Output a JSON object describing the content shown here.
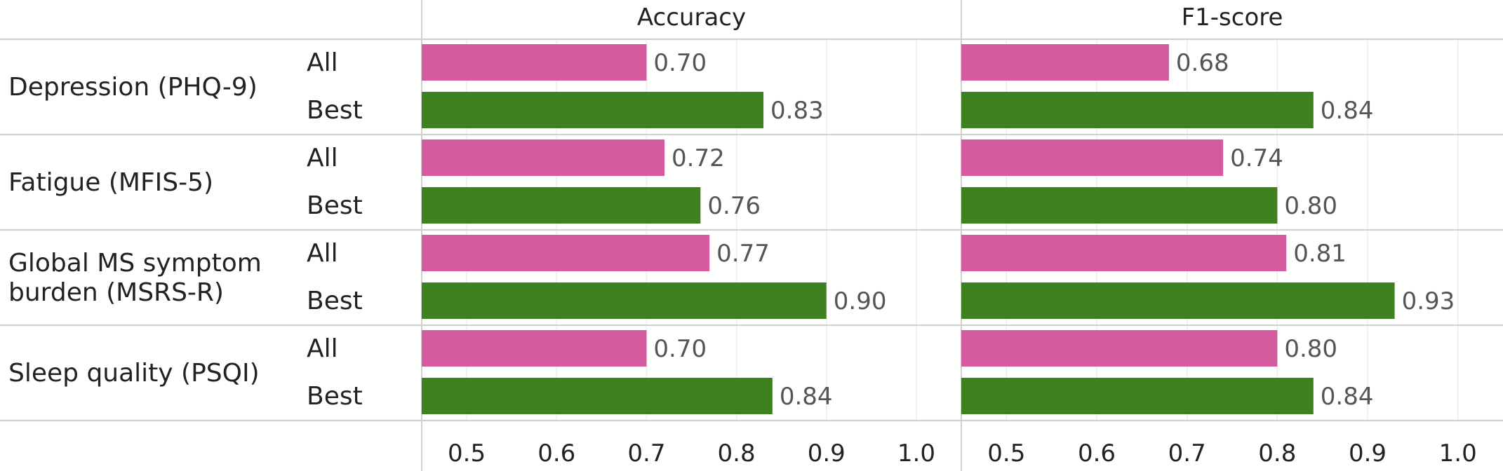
{
  "chart_data": {
    "type": "bar",
    "orientation": "horizontal",
    "panels": [
      "Accuracy",
      "F1-score"
    ],
    "groups": [
      {
        "label_lines": [
          "Depression (PHQ-9)"
        ]
      },
      {
        "label_lines": [
          "Fatigue (MFIS-5)"
        ]
      },
      {
        "label_lines": [
          "Global MS symptom",
          "burden (MSRS-R)"
        ]
      },
      {
        "label_lines": [
          "Sleep quality (PSQI)"
        ]
      }
    ],
    "subcategories": [
      "All",
      "Best"
    ],
    "values": {
      "Accuracy": [
        [
          0.7,
          0.83
        ],
        [
          0.72,
          0.76
        ],
        [
          0.77,
          0.9
        ],
        [
          0.7,
          0.84
        ]
      ],
      "F1-score": [
        [
          0.68,
          0.84
        ],
        [
          0.74,
          0.8
        ],
        [
          0.81,
          0.93
        ],
        [
          0.8,
          0.84
        ]
      ]
    },
    "value_labels": {
      "Accuracy": [
        [
          "0.70",
          "0.83"
        ],
        [
          "0.72",
          "0.76"
        ],
        [
          "0.77",
          "0.90"
        ],
        [
          "0.70",
          "0.84"
        ]
      ],
      "F1-score": [
        [
          "0.68",
          "0.84"
        ],
        [
          "0.74",
          "0.80"
        ],
        [
          "0.81",
          "0.93"
        ],
        [
          "0.80",
          "0.84"
        ]
      ]
    },
    "colors": {
      "All": "#d45c9e",
      "Best": "#3f8120"
    },
    "xlim": [
      0.45,
      1.05
    ],
    "xticks": [
      "0.5",
      "0.6",
      "0.7",
      "0.8",
      "0.9",
      "1.0"
    ],
    "grid": true
  }
}
